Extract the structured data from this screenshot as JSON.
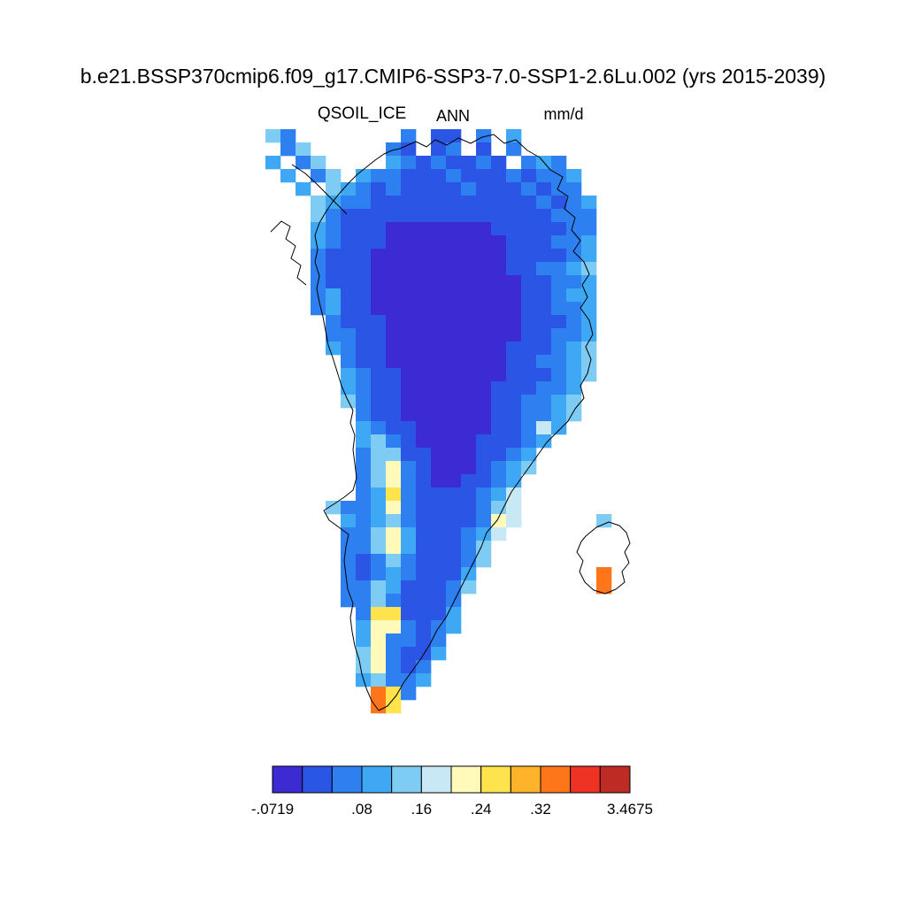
{
  "title": "b.e21.BSSP370cmip6.f09_g17.CMIP6-SSP3-7.0-SSP1-2.6Lu.002 (yrs 2015-2039)",
  "subtitle": {
    "variable": "QSOIL_ICE",
    "season": "ANN",
    "units": "mm/d"
  },
  "chart_data": {
    "type": "heatmap",
    "title": "QSOIL_ICE",
    "season": "ANN",
    "units": "mm/d",
    "region": "Greenland with Iceland and Canadian Arctic fringe",
    "colorbar": {
      "min": -0.0719,
      "max": 3.4675,
      "levels": [
        0,
        0.04,
        0.08,
        0.12,
        0.16,
        0.2,
        0.24,
        0.28,
        0.32,
        0.36,
        0.4
      ],
      "colors": [
        "#3C2BD3",
        "#2A55E5",
        "#2E7FF0",
        "#3FA8F4",
        "#7ECBF4",
        "#C9E8F6",
        "#FFFAB9",
        "#FFE34D",
        "#FFB32A",
        "#FF7519",
        "#EE3224",
        "#BD2B24"
      ],
      "tick_labels": [
        {
          "text": "-.0719",
          "pos": 0
        },
        {
          "text": ".08",
          "pos": 3
        },
        {
          "text": ".16",
          "pos": 5
        },
        {
          "text": ".24",
          "pos": 7
        },
        {
          "text": ".32",
          "pos": 9
        },
        {
          "text": "3.4675",
          "pos": 12
        }
      ]
    },
    "grid": {
      "cols": 25,
      "rows_count": 44,
      "encoding": "each char is a palette index 0-9,A,B; '.' means no data",
      "rows": [
        "42.......2.11.2.3........",
        ".24.....21.12.1.2........",
        "3.24....32121121.232.....",
        ".3.24.322111211121223....",
        "..3.43212111121112122....",
        "...4322111111111112123...",
        "...4211111111111111222...",
        "...3211100000001111122...",
        "...3211100000000111223...",
        "...2111000000000111123...",
        "...2111000000000112234...",
        "...2111000000000011223...",
        "...2311000000000011233...",
        "...2311000000000011223...",
        "....211100000000011123...",
        "....221100000000011223...",
        "....321100000000111234...",
        ".....21100000000112234...",
        ".....32110000000111234...",
        ".....3211000000111223....",
        ".....4211000000112234....",
        "......211000000112234....",
        "......32110000011253.....",
        "......3421000011123......",
        "......244110001123.......",
        "......246210001234.......",
        "......24621001123........",
        "......23721111235........",
        "....4223621111245........",
        ".....323421111265.....4..",
        ".....22463111235.........",
        ".....2246311124..........",
        ".....2124211124..........",
        ".....212321113........9..",
        ".....224311124........9..",
        ".....22421112............",
        "......2771113............",
        "......3662123............",
        "......362212.............",
        "......462113.............",
        "......46212..............",
        "......34223..............",
        ".......972...............",
        ".......97................"
      ]
    }
  }
}
